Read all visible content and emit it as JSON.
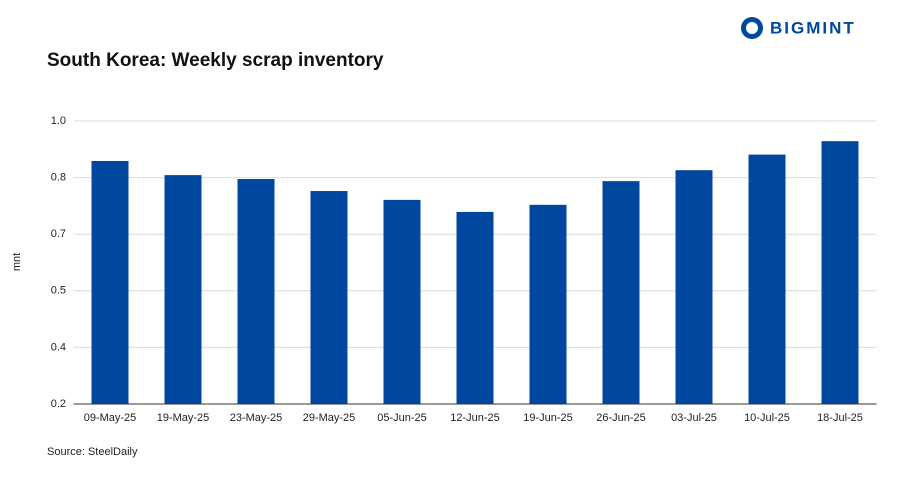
{
  "brand": "BIGMINT",
  "chart_data": {
    "type": "bar",
    "title": "South Korea: Weekly scrap inventory",
    "y_label": "mnt",
    "source": "Source: SteelDaily",
    "categories": [
      "09-May-25",
      "19-May-25",
      "23-May-25",
      "29-May-25",
      "05-Jun-25",
      "12-Jun-25",
      "19-Jun-25",
      "26-Jun-25",
      "03-Jul-25",
      "10-Jul-25",
      "18-Jul-25"
    ],
    "values": [
      0.887,
      0.847,
      0.836,
      0.802,
      0.777,
      0.743,
      0.763,
      0.83,
      0.861,
      0.905,
      0.943
    ],
    "color": "#0047a0",
    "ylim": [
      0.2,
      1.0
    ],
    "yticks": [
      0.2,
      {
        "value": 0.36,
        "label": "0.4"
      },
      {
        "value": 0.52,
        "label": "0.5"
      },
      {
        "value": 0.68,
        "label": "0.7"
      },
      {
        "value": 0.84,
        "label": "0.8"
      },
      {
        "value": 1.0,
        "label": "1.0"
      }
    ],
    "grid": true
  }
}
